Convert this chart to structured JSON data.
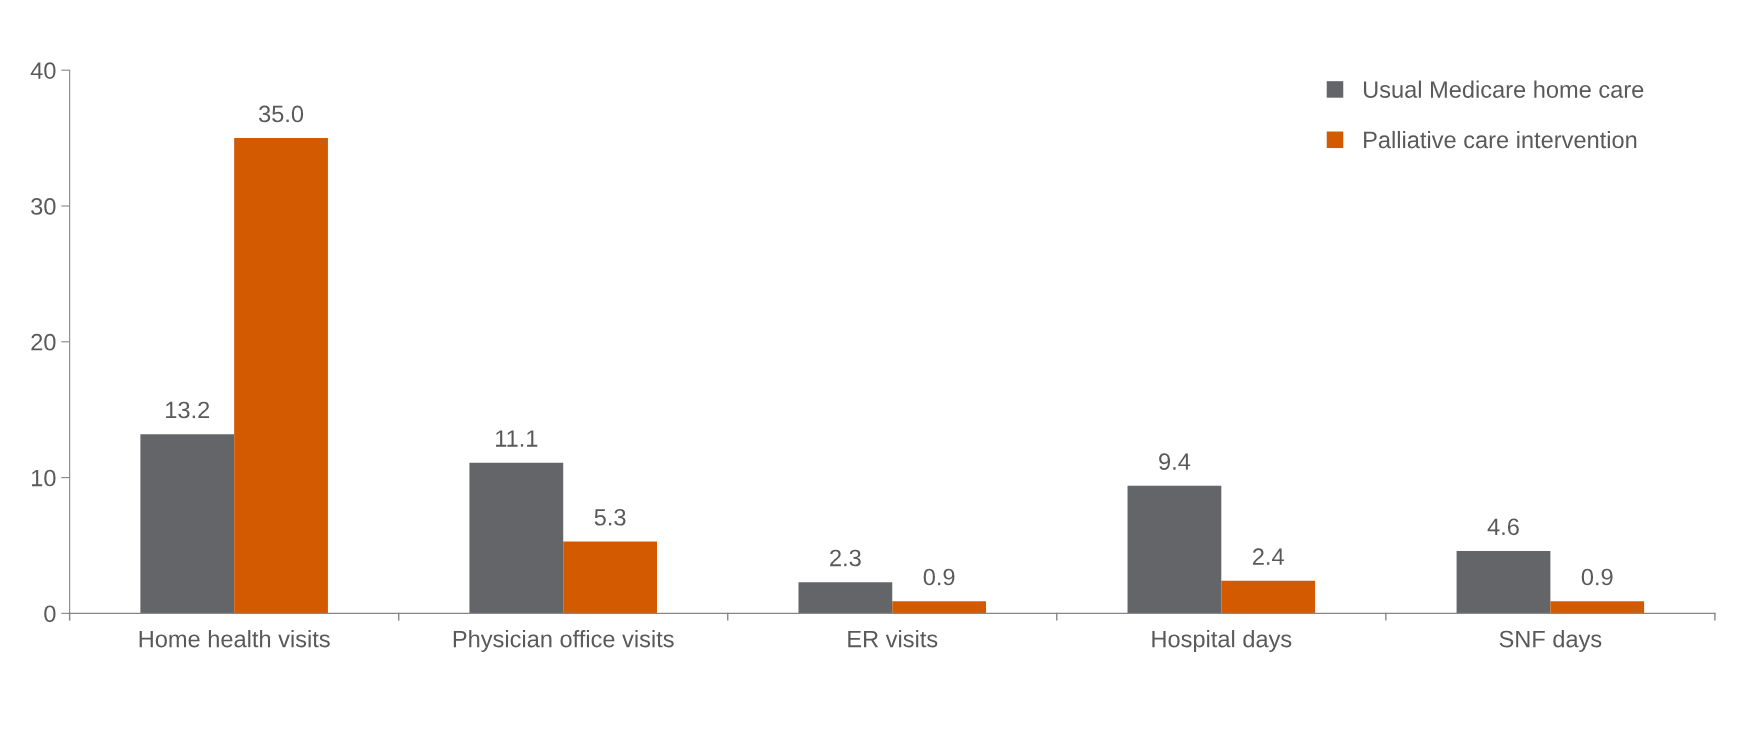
{
  "chart_data": {
    "type": "bar",
    "categories": [
      "Home health visits",
      "Physician office visits",
      "ER visits",
      "Hospital days",
      "SNF days"
    ],
    "series": [
      {
        "name": "Usual Medicare home care",
        "color": "#636569",
        "values": [
          13.2,
          11.1,
          2.3,
          9.4,
          4.6
        ],
        "value_labels": [
          "13.2",
          "11.1",
          "2.3",
          "9.4",
          "4.6"
        ]
      },
      {
        "name": "Palliative care intervention",
        "color": "#d35a00",
        "values": [
          35.0,
          5.3,
          0.9,
          2.4,
          0.9
        ],
        "value_labels": [
          "35.0",
          "5.3",
          "0.9",
          "2.4",
          "0.9"
        ]
      }
    ],
    "ylim": [
      0,
      40
    ],
    "yticks": [
      0,
      10,
      20,
      30,
      40
    ],
    "grid": false,
    "legend": "top right"
  }
}
